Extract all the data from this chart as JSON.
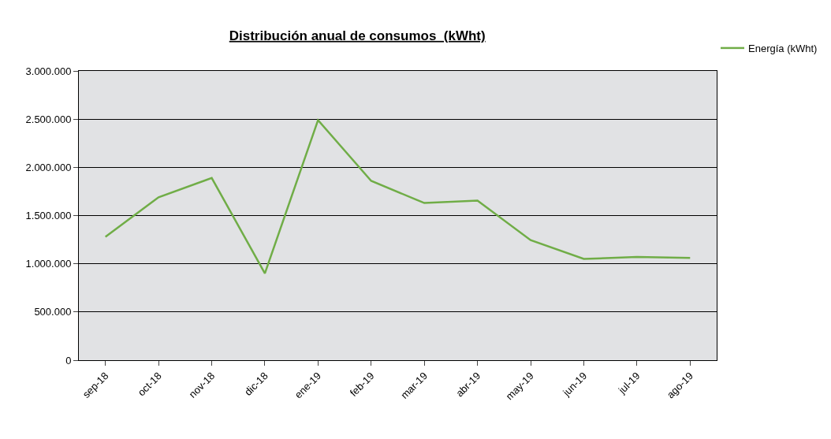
{
  "chart_data": {
    "type": "line",
    "title": "Distribución anual de consumos  (kWht)",
    "categories": [
      "sep-18",
      "oct-18",
      "nov-18",
      "dic-18",
      "ene-19",
      "feb-19",
      "mar-19",
      "abr-19",
      "may-19",
      "jun-19",
      "jul-19",
      "ago-19"
    ],
    "series": [
      {
        "name": "Energía (kWht)",
        "color": "#70ad47",
        "values": [
          1280000,
          1690000,
          1890000,
          900000,
          2490000,
          1860000,
          1630000,
          1655000,
          1245000,
          1050000,
          1070000,
          1060000
        ]
      }
    ],
    "ylim": [
      0,
      3000000
    ],
    "yticks": [
      {
        "value": 0,
        "label": "0"
      },
      {
        "value": 500000,
        "label": "500.000"
      },
      {
        "value": 1000000,
        "label": "1.000.000"
      },
      {
        "value": 1500000,
        "label": "1.500.000"
      },
      {
        "value": 2000000,
        "label": "2.000.000"
      },
      {
        "value": 2500000,
        "label": "2.500.000"
      },
      {
        "value": 3000000,
        "label": "3.000.000"
      }
    ],
    "grid": "y",
    "legend": "top right",
    "marker": "none",
    "line_style": "solid"
  }
}
